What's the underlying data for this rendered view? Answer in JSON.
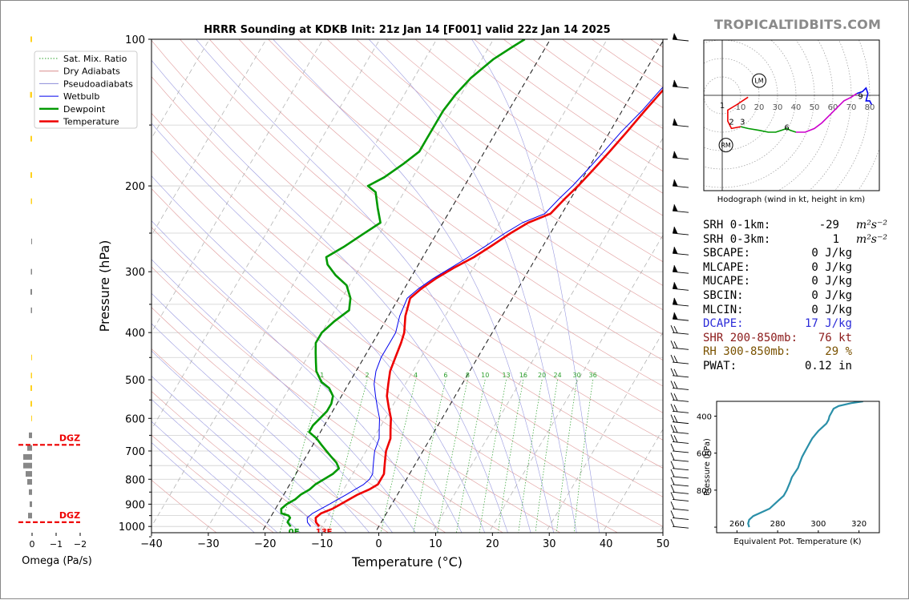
{
  "watermark": "TROPICALTIDBITS.COM",
  "title": "HRRR Sounding at KDKB Init: 21z Jan 14 [F001] valid 22z Jan 14 2025",
  "skewt": {
    "xlabel": "Temperature (°C)",
    "ylabel": "Pressure (hPa)",
    "xticks": [
      -40,
      -30,
      -20,
      -10,
      0,
      10,
      20,
      30,
      40,
      50
    ],
    "yticks": [
      100,
      200,
      300,
      400,
      500,
      600,
      700,
      800,
      900,
      1000
    ],
    "legend": [
      {
        "label": "Sat. Mix. Ratio",
        "color": "#2ca02c",
        "style": "dotted"
      },
      {
        "label": "Dry Adiabats",
        "color": "#d98c8c",
        "style": "solid"
      },
      {
        "label": "Pseudoadiabats",
        "color": "#8c8cd9",
        "style": "solid"
      },
      {
        "label": "Wetbulb",
        "color": "#0000ee",
        "style": "solid"
      },
      {
        "label": "Dewpoint",
        "color": "#009900",
        "style": "solid"
      },
      {
        "label": "Temperature",
        "color": "#ee0000",
        "style": "solid"
      }
    ],
    "mixing_ratio_labels": [
      "1",
      "2",
      "4",
      "6",
      "8",
      "10",
      "13",
      "16",
      "20",
      "24",
      "30",
      "36"
    ],
    "surface_temp_label": "13F",
    "surface_dewpoint_label": "0F"
  },
  "chart_data": {
    "type": "line",
    "title": "HRRR Sounding at KDKB Init: 21z Jan 14 [F001] valid 22z Jan 14 2025",
    "xlabel": "Temperature (°C)",
    "ylabel": "Pressure (hPa)",
    "xlim": [
      -40,
      50
    ],
    "ylim": [
      1030,
      100
    ],
    "y_scale": "log",
    "series": [
      {
        "name": "Temperature",
        "color": "#ee0000",
        "points": [
          [
            -10.5,
            1000
          ],
          [
            -11.5,
            980
          ],
          [
            -12,
            960
          ],
          [
            -11.5,
            940
          ],
          [
            -10,
            920
          ],
          [
            -9,
            900
          ],
          [
            -8,
            880
          ],
          [
            -7,
            860
          ],
          [
            -5.5,
            840
          ],
          [
            -4.5,
            820
          ],
          [
            -4.5,
            800
          ],
          [
            -4.5,
            780
          ],
          [
            -5,
            760
          ],
          [
            -5.5,
            740
          ],
          [
            -6,
            720
          ],
          [
            -6.5,
            700
          ],
          [
            -7,
            660
          ],
          [
            -8,
            630
          ],
          [
            -9,
            600
          ],
          [
            -10.5,
            570
          ],
          [
            -12,
            540
          ],
          [
            -13,
            510
          ],
          [
            -14,
            480
          ],
          [
            -14.5,
            450
          ],
          [
            -15,
            420
          ],
          [
            -15.5,
            400
          ],
          [
            -17,
            370
          ],
          [
            -18,
            340
          ],
          [
            -17,
            325
          ],
          [
            -15.5,
            310
          ],
          [
            -13.5,
            295
          ],
          [
            -11,
            280
          ],
          [
            -9,
            265
          ],
          [
            -7,
            250
          ],
          [
            -5,
            238
          ],
          [
            -2,
            228
          ],
          [
            -1,
            212
          ],
          [
            0,
            200
          ],
          [
            1,
            185
          ],
          [
            2,
            170
          ],
          [
            3,
            155
          ],
          [
            4,
            140
          ],
          [
            5,
            128
          ],
          [
            6,
            118
          ],
          [
            7,
            110
          ],
          [
            8,
            104
          ],
          [
            8.7,
            100
          ]
        ]
      },
      {
        "name": "Dewpoint",
        "color": "#009900",
        "points": [
          [
            -15.5,
            1000
          ],
          [
            -16.5,
            980
          ],
          [
            -16.5,
            960
          ],
          [
            -17,
            950
          ],
          [
            -18.5,
            940
          ],
          [
            -19,
            920
          ],
          [
            -18.5,
            900
          ],
          [
            -17.5,
            880
          ],
          [
            -17,
            860
          ],
          [
            -16,
            840
          ],
          [
            -15.5,
            820
          ],
          [
            -14.5,
            800
          ],
          [
            -13.5,
            780
          ],
          [
            -13,
            760
          ],
          [
            -14,
            740
          ],
          [
            -15.5,
            720
          ],
          [
            -17,
            700
          ],
          [
            -18.5,
            680
          ],
          [
            -20,
            660
          ],
          [
            -22,
            640
          ],
          [
            -22,
            620
          ],
          [
            -21.5,
            600
          ],
          [
            -21,
            580
          ],
          [
            -21,
            560
          ],
          [
            -21.5,
            540
          ],
          [
            -23,
            520
          ],
          [
            -25,
            505
          ],
          [
            -27,
            480
          ],
          [
            -28,
            460
          ],
          [
            -29,
            440
          ],
          [
            -30,
            420
          ],
          [
            -30,
            400
          ],
          [
            -29,
            380
          ],
          [
            -27.5,
            360
          ],
          [
            -28.5,
            340
          ],
          [
            -30.5,
            320
          ],
          [
            -33.5,
            305
          ],
          [
            -36,
            290
          ],
          [
            -37,
            280
          ],
          [
            -35,
            267
          ],
          [
            -33,
            252
          ],
          [
            -31,
            238
          ],
          [
            -33,
            222
          ],
          [
            -35,
            206
          ],
          [
            -37,
            200
          ],
          [
            -35,
            192
          ],
          [
            -33,
            180
          ],
          [
            -31.5,
            170
          ],
          [
            -31.5,
            160
          ],
          [
            -31.5,
            150
          ],
          [
            -31.5,
            140
          ],
          [
            -31,
            130
          ],
          [
            -30,
            120
          ],
          [
            -28,
            110
          ],
          [
            -26,
            104
          ],
          [
            -24.5,
            100
          ]
        ]
      },
      {
        "name": "Wetbulb",
        "color": "#0000ee",
        "points": [
          [
            -12,
            1000
          ],
          [
            -13,
            980
          ],
          [
            -13.5,
            960
          ],
          [
            -13,
            940
          ],
          [
            -12,
            920
          ],
          [
            -11,
            900
          ],
          [
            -10,
            880
          ],
          [
            -9,
            860
          ],
          [
            -8,
            840
          ],
          [
            -7,
            820
          ],
          [
            -6.5,
            800
          ],
          [
            -6.5,
            780
          ],
          [
            -7,
            760
          ],
          [
            -7.5,
            740
          ],
          [
            -8,
            720
          ],
          [
            -8.5,
            700
          ],
          [
            -9,
            660
          ],
          [
            -10,
            630
          ],
          [
            -11,
            600
          ],
          [
            -12.5,
            570
          ],
          [
            -14,
            540
          ],
          [
            -15.5,
            510
          ],
          [
            -16.5,
            480
          ],
          [
            -17,
            450
          ],
          [
            -17,
            420
          ],
          [
            -17,
            400
          ],
          [
            -18,
            370
          ],
          [
            -18.5,
            340
          ],
          [
            -17.5,
            325
          ],
          [
            -16,
            310
          ],
          [
            -14,
            295
          ],
          [
            -12,
            280
          ],
          [
            -10,
            265
          ],
          [
            -8,
            250
          ],
          [
            -6,
            238
          ],
          [
            -3,
            228
          ],
          [
            -2,
            212
          ],
          [
            -1,
            200
          ],
          [
            0,
            185
          ],
          [
            1,
            170
          ],
          [
            2,
            155
          ],
          [
            3.5,
            140
          ],
          [
            4.5,
            128
          ],
          [
            5.5,
            118
          ],
          [
            6.5,
            110
          ],
          [
            7.5,
            104
          ],
          [
            8,
            100
          ]
        ]
      }
    ],
    "omega": {
      "xlabel": "Omega (Pa/s)",
      "xticks": [
        "0",
        "−1",
        "−2"
      ],
      "dgz_label": "DGZ",
      "dgz_layer_hpa": [
        680,
        980
      ]
    },
    "hodograph": {
      "caption": "Hodograph (wind in kt, height in km)",
      "ring_labels": [
        "10",
        "20",
        "30",
        "40",
        "50",
        "60",
        "70",
        "80"
      ],
      "height_labels": [
        "1",
        "2",
        "3",
        "6",
        "9"
      ],
      "markers": [
        "LM",
        "RM"
      ]
    },
    "theta_e": {
      "type": "line",
      "xlabel": "Equivalent Pot. Temperature (K)",
      "ylabel": "Pressure (hPa)",
      "xticks": [
        260,
        280,
        300,
        320
      ],
      "yticks": [
        400,
        600,
        800
      ],
      "color": "#2a8fa8",
      "points": [
        [
          266,
          1000
        ],
        [
          265.5,
          980
        ],
        [
          266,
          960
        ],
        [
          268,
          940
        ],
        [
          272,
          920
        ],
        [
          276,
          900
        ],
        [
          280,
          860
        ],
        [
          283,
          830
        ],
        [
          284.5,
          800
        ],
        [
          286,
          760
        ],
        [
          287,
          730
        ],
        [
          290,
          680
        ],
        [
          291,
          650
        ],
        [
          292,
          620
        ],
        [
          293,
          600
        ],
        [
          294,
          580
        ],
        [
          295,
          560
        ],
        [
          296,
          540
        ],
        [
          297,
          520
        ],
        [
          298.5,
          500
        ],
        [
          300,
          480
        ],
        [
          302,
          460
        ],
        [
          304,
          440
        ],
        [
          305,
          420
        ],
        [
          305.5,
          400
        ],
        [
          306.5,
          380
        ],
        [
          307.5,
          360
        ],
        [
          310,
          345
        ],
        [
          316,
          330
        ],
        [
          322,
          320
        ]
      ]
    }
  },
  "indices": [
    {
      "label": "SRH 0-1km:",
      "value": "-29",
      "unit": "m²s⁻²",
      "style": "normal"
    },
    {
      "label": "SRH 0-3km:",
      "value": "1",
      "unit": "m²s⁻²",
      "style": "normal"
    },
    {
      "label": "SBCAPE:",
      "value": "0 J/kg",
      "unit": "",
      "style": "normal"
    },
    {
      "label": "MLCAPE:",
      "value": "0 J/kg",
      "unit": "",
      "style": "normal"
    },
    {
      "label": "MUCAPE:",
      "value": "0 J/kg",
      "unit": "",
      "style": "normal"
    },
    {
      "label": "SBCIN:",
      "value": "0 J/kg",
      "unit": "",
      "style": "normal"
    },
    {
      "label": "MLCIN:",
      "value": "0 J/kg",
      "unit": "",
      "style": "normal"
    },
    {
      "label": "DCAPE:",
      "value": "17 J/kg",
      "unit": "",
      "style": "dcape"
    },
    {
      "label": "SHR 200-850mb:",
      "value": "76 kt",
      "unit": "",
      "style": "shr"
    },
    {
      "label": "RH 300-850mb:",
      "value": "29 %",
      "unit": "",
      "style": "rh"
    },
    {
      "label": "PWAT:",
      "value": "0.12 in",
      "unit": "",
      "style": "normal"
    }
  ]
}
